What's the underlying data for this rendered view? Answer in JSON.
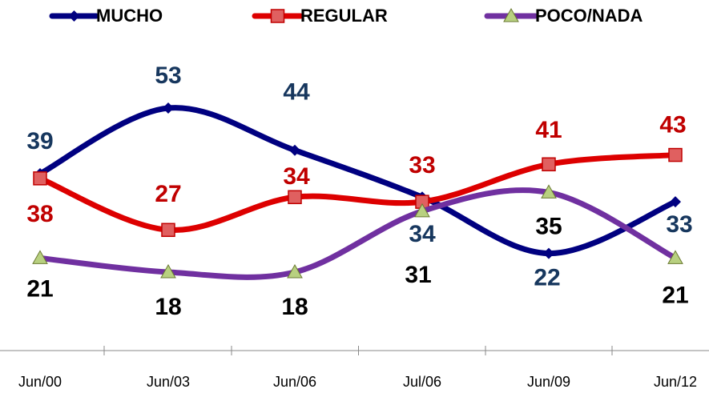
{
  "chart_data": {
    "type": "line",
    "categories": [
      "Jun/00",
      "Jun/03",
      "Jun/06",
      "Jul/06",
      "Jun/09",
      "Jun/12"
    ],
    "series": [
      {
        "name": "MUCHO",
        "color": "#000080",
        "label_color": "#17375e",
        "marker": "diamond",
        "values": [
          39,
          53,
          44,
          34,
          22,
          33
        ]
      },
      {
        "name": "REGULAR",
        "color": "#dd0000",
        "label_color": "#c00000",
        "marker": "square",
        "values": [
          38,
          27,
          34,
          33,
          41,
          43
        ]
      },
      {
        "name": "POCO/NADA",
        "color": "#7030a0",
        "label_color": "#000000",
        "marker": "triangle",
        "values": [
          21,
          18,
          18,
          31,
          35,
          21
        ]
      }
    ]
  }
}
